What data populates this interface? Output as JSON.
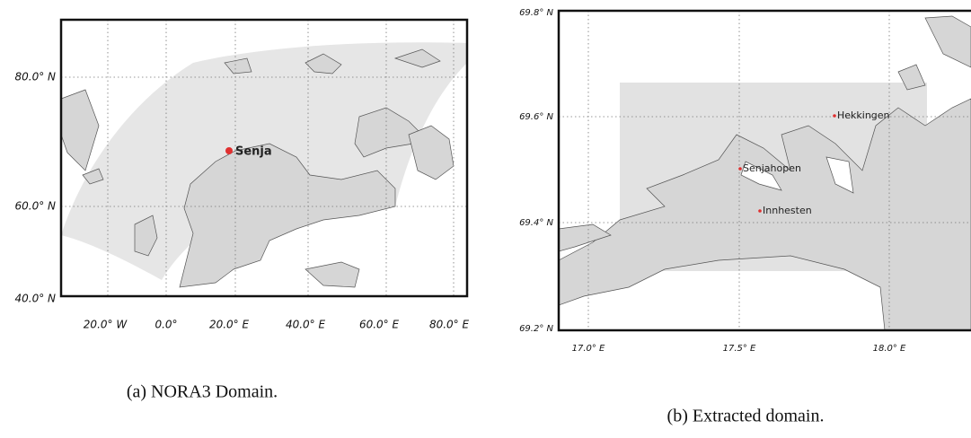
{
  "panels": [
    {
      "yticks": [
        "80.0° N",
        "60.0° N",
        "40.0° N"
      ],
      "xticks": [
        "20.0° W",
        "0.0°",
        "20.0° E",
        "40.0° E",
        "60.0° E",
        "80.0° E"
      ],
      "places": [
        "Senja"
      ],
      "caption": "(a) NORA3 Domain."
    },
    {
      "yticks": [
        "69.8° N",
        "69.6° N",
        "69.4° N",
        "69.2° N"
      ],
      "xticks": [
        "17.0° E",
        "17.5° E",
        "18.0° E"
      ],
      "places": [
        "Hekkingen",
        "Senjahopen",
        "Innhesten"
      ],
      "caption": "(b) Extracted domain."
    }
  ]
}
